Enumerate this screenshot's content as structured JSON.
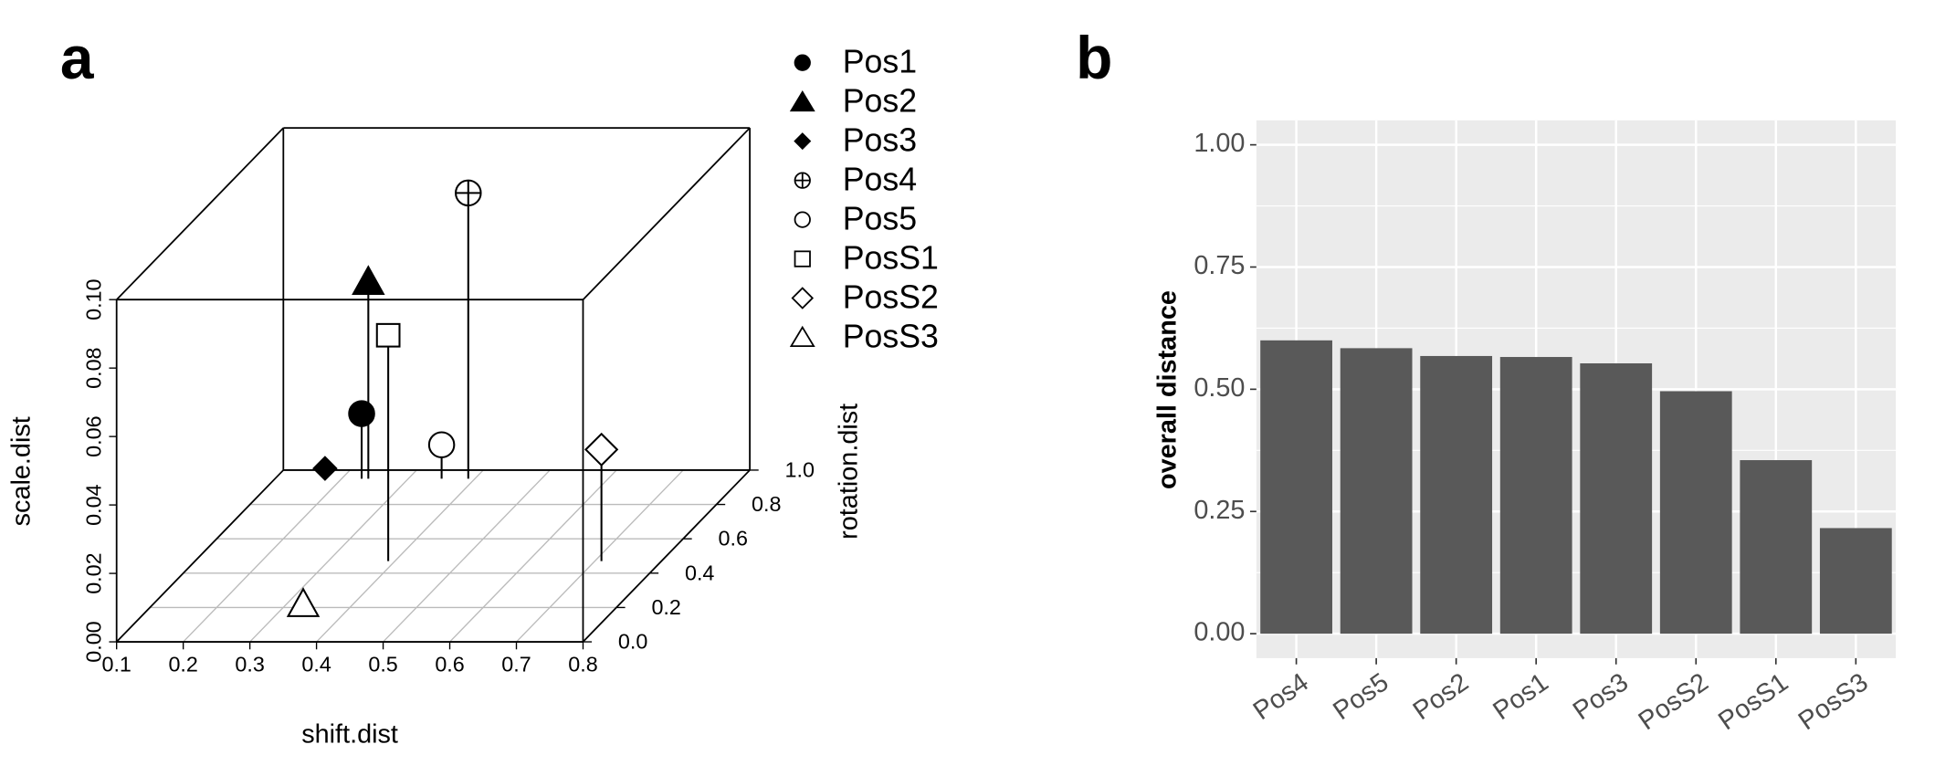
{
  "chart_data": [
    {
      "type": "scatter3d",
      "panel_label": "a",
      "x_label": "shift.dist",
      "y_label": "rotation.dist",
      "z_label": "scale.dist",
      "xlim": [
        0.1,
        0.8
      ],
      "xticks": [
        0.1,
        0.2,
        0.3,
        0.4,
        0.5,
        0.6,
        0.7,
        0.8
      ],
      "ylim": [
        0,
        1
      ],
      "yticks": [
        {
          "value": 0,
          "label": "0.0"
        },
        0.2,
        0.4,
        0.6,
        0.8,
        {
          "value": 1,
          "label": "1.0"
        }
      ],
      "zlim": [
        0,
        0.1
      ],
      "zticks": [
        {
          "value": 0,
          "label": "0.00"
        },
        {
          "value": 0.02,
          "label": "0.02"
        },
        {
          "value": 0.04,
          "label": "0.04"
        },
        {
          "value": 0.06,
          "label": "0.06"
        },
        {
          "value": 0.08,
          "label": "0.08"
        },
        {
          "value": 0.1,
          "label": "0.10"
        }
      ],
      "grid": true,
      "series": [
        {
          "name": "Pos1",
          "marker": "circle-filled",
          "x": [
            0.23
          ],
          "y": [
            0.95
          ],
          "z": [
            0.019
          ]
        },
        {
          "name": "Pos2",
          "marker": "triangle-filled",
          "x": [
            0.24
          ],
          "y": [
            0.95
          ],
          "z": [
            0.0575
          ]
        },
        {
          "name": "Pos3",
          "marker": "diamond-filled",
          "x": [
            0.17
          ],
          "y": [
            0.97
          ],
          "z": [
            0.002
          ]
        },
        {
          "name": "Pos4",
          "marker": "circle-plus",
          "x": [
            0.39
          ],
          "y": [
            0.95
          ],
          "z": [
            0.0835
          ]
        },
        {
          "name": "Pos5",
          "marker": "circle-open",
          "x": [
            0.35
          ],
          "y": [
            0.95
          ],
          "z": [
            0.0099
          ]
        },
        {
          "name": "PosS1",
          "marker": "square-open",
          "x": [
            0.39
          ],
          "y": [
            0.47
          ],
          "z": [
            0.066
          ]
        },
        {
          "name": "PosS2",
          "marker": "diamond-open",
          "x": [
            0.71
          ],
          "y": [
            0.47
          ],
          "z": [
            0.0326
          ]
        },
        {
          "name": "PosS3",
          "marker": "triangle-open",
          "x": [
            0.34
          ],
          "y": [
            0.16
          ],
          "z": [
            0.003
          ]
        }
      ]
    },
    {
      "type": "bar",
      "panel_label": "b",
      "y_label": "overall distance",
      "categories": [
        "Pos4",
        "Pos5",
        "Pos2",
        "Pos1",
        "Pos3",
        "PosS2",
        "PosS1",
        "PosS3"
      ],
      "values": [
        0.6,
        0.584,
        0.568,
        0.566,
        0.553,
        0.496,
        0.355,
        0.216
      ],
      "color": "#595959",
      "ylim": [
        -0.05,
        1.05
      ],
      "yticks": [
        {
          "value": 0,
          "label": "0.00"
        },
        {
          "value": 0.25,
          "label": "0.25"
        },
        {
          "value": 0.5,
          "label": "0.50"
        },
        {
          "value": 0.75,
          "label": "0.75"
        },
        {
          "value": 1,
          "label": "1.00"
        }
      ],
      "grid": true
    }
  ]
}
